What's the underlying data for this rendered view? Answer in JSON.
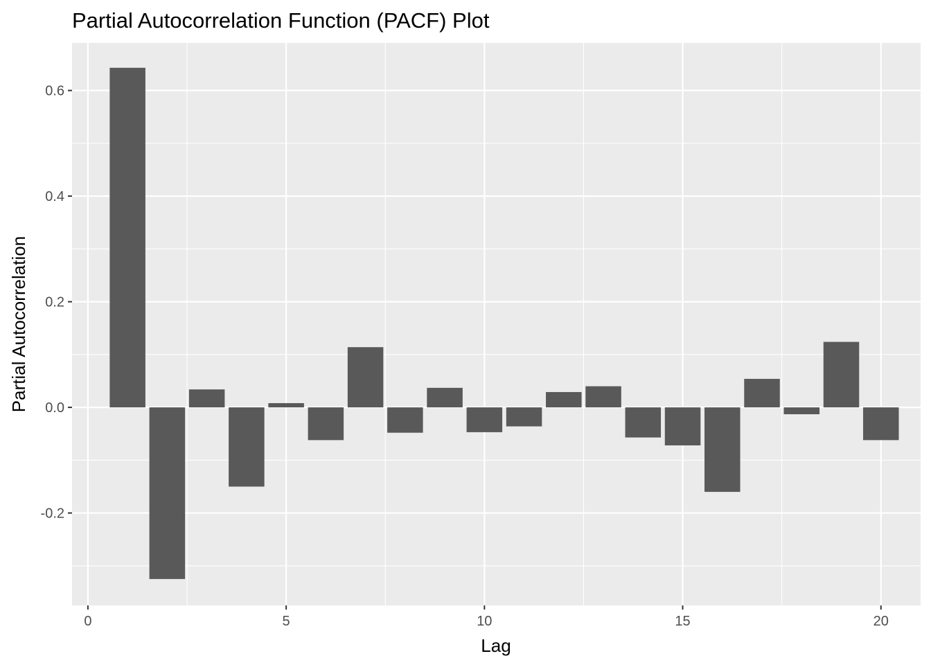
{
  "chart_data": {
    "type": "bar",
    "title": "Partial Autocorrelation Function (PACF) Plot",
    "xlabel": "Lag",
    "ylabel": "Partial Autocorrelation",
    "x": [
      1,
      2,
      3,
      4,
      5,
      6,
      7,
      8,
      9,
      10,
      11,
      12,
      13,
      14,
      15,
      16,
      17,
      18,
      19,
      20
    ],
    "values": [
      0.643,
      -0.325,
      0.034,
      -0.15,
      0.008,
      -0.062,
      0.114,
      -0.048,
      0.037,
      -0.047,
      -0.036,
      0.029,
      0.04,
      -0.057,
      -0.072,
      -0.16,
      0.054,
      -0.013,
      0.124,
      -0.062
    ],
    "xlim": [
      -0.4,
      21.0
    ],
    "ylim": [
      -0.375,
      0.69
    ],
    "x_ticks": [
      0,
      5,
      10,
      15,
      20
    ],
    "x_tick_labels": [
      "0",
      "5",
      "10",
      "15",
      "20"
    ],
    "y_ticks": [
      -0.2,
      0.0,
      0.2,
      0.4,
      0.6
    ],
    "y_tick_labels": [
      "-0.2",
      "0.0",
      "0.2",
      "0.4",
      "0.6"
    ],
    "grid": true,
    "colors": {
      "bar": "#595959",
      "panel_background": "#ebebeb",
      "grid": "#ffffff"
    }
  }
}
